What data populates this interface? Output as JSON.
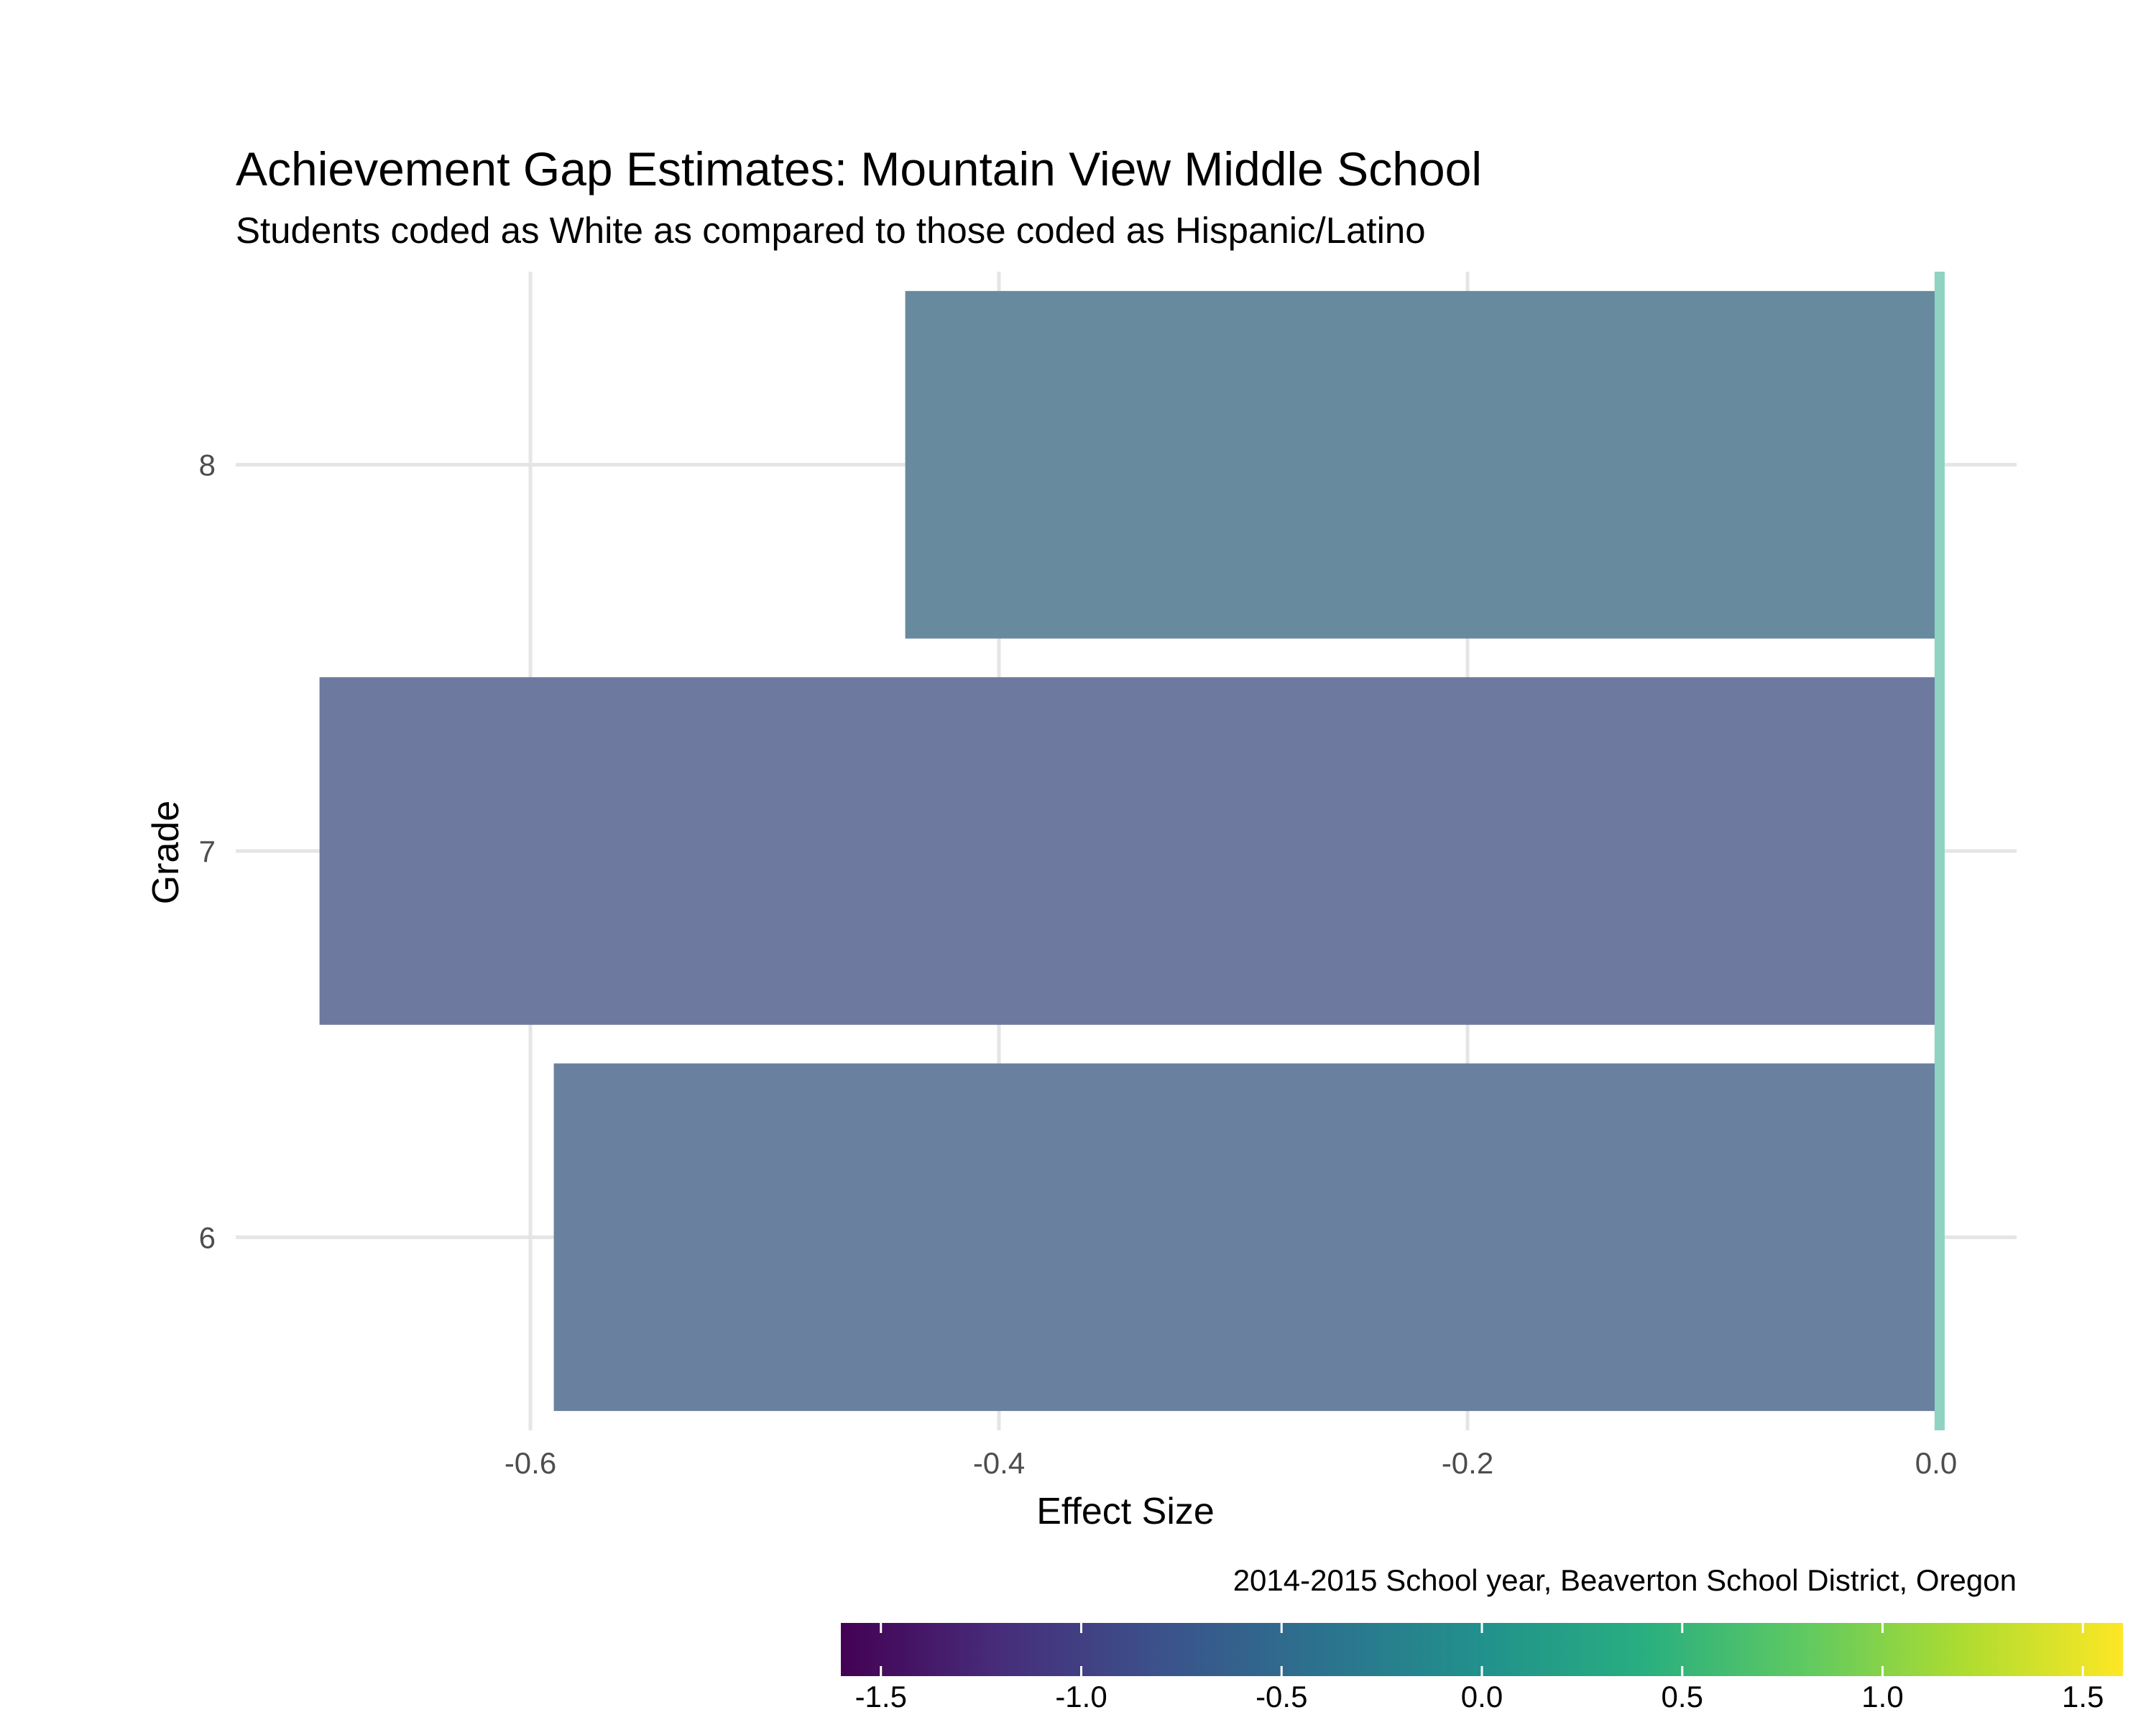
{
  "chart_data": {
    "type": "bar",
    "orientation": "horizontal",
    "title": "Achievement Gap Estimates: Mountain View Middle School",
    "subtitle": "Students coded as White as compared to those coded as Hispanic/Latino",
    "xlabel": "Effect Size",
    "ylabel": "Grade",
    "caption": "2014-2015 School year, Beaverton School District, Oregon",
    "categories": [
      "6",
      "7",
      "8"
    ],
    "values": [
      -0.59,
      -0.69,
      -0.44
    ],
    "bar_colors": [
      "#6a809f",
      "#6d799f",
      "#688a9f"
    ],
    "xlim": [
      -0.73,
      0.035
    ],
    "x_ticks": [
      -0.6,
      -0.4,
      -0.2,
      0.0
    ],
    "x_tick_labels": [
      "-0.6",
      "-0.4",
      "-0.2",
      "0.0"
    ],
    "reference_line": {
      "x": 0.0,
      "color": "#8fd4c2"
    },
    "grid": true,
    "legend": {
      "type": "colorbar",
      "position": "bottom",
      "palette": "viridis",
      "range": [
        -1.6,
        1.6
      ],
      "ticks": [
        -1.5,
        -1.0,
        -0.5,
        0.0,
        0.5,
        1.0,
        1.5
      ],
      "tick_labels": [
        "-1.5",
        "-1.0",
        "-0.5",
        "0.0",
        "0.5",
        "1.0",
        "1.5"
      ]
    }
  }
}
